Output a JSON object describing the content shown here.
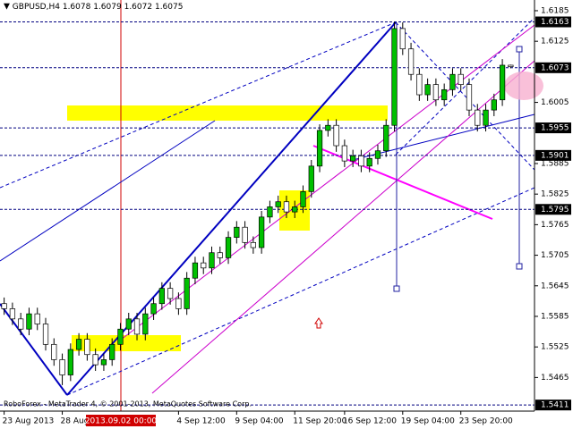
{
  "chart_data": {
    "type": "candlestick",
    "header": {
      "symbol": "GBPUSD,H4",
      "open": 1.6078,
      "high": 1.6079,
      "low": 1.6072,
      "close": 1.6075
    },
    "copyright": "RoboForex - MetaTrader 4, © 2001-2013, MetaQuotes Software Corp.",
    "crosshair_label": "2013.09.02 00:00",
    "categories": [
      "23 Aug 2013",
      null,
      null,
      null,
      null,
      null,
      null,
      "28 Aug 2013",
      null,
      null,
      null,
      null,
      null,
      null,
      null,
      null,
      null,
      null,
      null,
      null,
      null,
      "4 Sep 12:00",
      null,
      null,
      null,
      null,
      null,
      null,
      "9 Sep 04:00",
      null,
      null,
      null,
      null,
      null,
      null,
      "11 Sep 20:00",
      null,
      null,
      null,
      null,
      null,
      "16 Sep 12:00",
      null,
      null,
      null,
      null,
      null,
      null,
      "19 Sep 04:00",
      null,
      null,
      null,
      null,
      null,
      null,
      "23 Sep 20:00",
      null,
      null,
      null,
      null,
      null,
      null
    ],
    "open": [
      1.561,
      1.56,
      1.558,
      1.556,
      1.559,
      1.557,
      1.553,
      1.55,
      1.547,
      1.552,
      1.554,
      1.551,
      1.549,
      1.55,
      1.553,
      1.556,
      1.558,
      1.555,
      1.559,
      1.561,
      1.564,
      1.562,
      1.56,
      1.566,
      1.569,
      1.568,
      1.571,
      1.57,
      1.574,
      1.576,
      1.573,
      1.572,
      1.578,
      1.58,
      1.581,
      1.579,
      1.58,
      1.583,
      1.588,
      1.595,
      1.596,
      1.592,
      1.589,
      1.59,
      1.588,
      1.5895,
      1.591,
      1.596,
      1.615,
      1.611,
      1.606,
      1.602,
      1.604,
      1.601,
      1.603,
      1.606,
      1.604,
      1.599,
      1.596,
      1.599,
      1.601,
      1.6078
    ],
    "high": [
      1.5622,
      1.5612,
      1.5592,
      1.5602,
      1.5602,
      1.5582,
      1.5542,
      1.5512,
      1.5532,
      1.5552,
      1.5552,
      1.5522,
      1.5512,
      1.5542,
      1.5572,
      1.5592,
      1.5592,
      1.5602,
      1.5622,
      1.5652,
      1.5652,
      1.5632,
      1.5672,
      1.5702,
      1.5702,
      1.5722,
      1.5722,
      1.5752,
      1.5772,
      1.5772,
      1.5742,
      1.5792,
      1.5812,
      1.5822,
      1.5822,
      1.5812,
      1.5842,
      1.5892,
      1.5962,
      1.5972,
      1.5972,
      1.5932,
      1.5912,
      1.5912,
      1.5907,
      1.5922,
      1.5972,
      1.6163,
      1.6162,
      1.6122,
      1.6072,
      1.6052,
      1.6052,
      1.6042,
      1.6072,
      1.6072,
      1.6052,
      1.6002,
      1.6002,
      1.6022,
      1.609,
      1.6079
    ],
    "low": [
      1.5588,
      1.5568,
      1.5548,
      1.5548,
      1.5558,
      1.5518,
      1.5488,
      1.545,
      1.5458,
      1.5508,
      1.5498,
      1.5478,
      1.5478,
      1.5488,
      1.5518,
      1.5548,
      1.5538,
      1.5538,
      1.5578,
      1.5598,
      1.5608,
      1.5588,
      1.5588,
      1.5648,
      1.5668,
      1.5668,
      1.5688,
      1.5688,
      1.5728,
      1.5718,
      1.5708,
      1.5708,
      1.5768,
      1.5788,
      1.5778,
      1.5778,
      1.5788,
      1.5818,
      1.5868,
      1.5938,
      1.5908,
      1.5878,
      1.5878,
      1.5868,
      1.5868,
      1.5883,
      1.5898,
      1.5948,
      1.6098,
      1.6048,
      1.6008,
      1.6008,
      1.5998,
      1.5998,
      1.6018,
      1.6028,
      1.5978,
      1.5948,
      1.5948,
      1.5978,
      1.5998,
      1.6072
    ],
    "close": [
      1.56,
      1.558,
      1.556,
      1.559,
      1.557,
      1.553,
      1.55,
      1.547,
      1.552,
      1.554,
      1.551,
      1.549,
      1.55,
      1.553,
      1.556,
      1.558,
      1.555,
      1.559,
      1.561,
      1.564,
      1.562,
      1.56,
      1.566,
      1.569,
      1.568,
      1.571,
      1.57,
      1.574,
      1.576,
      1.573,
      1.572,
      1.578,
      1.58,
      1.581,
      1.579,
      1.58,
      1.583,
      1.588,
      1.595,
      1.596,
      1.592,
      1.589,
      1.59,
      1.588,
      1.5895,
      1.591,
      1.596,
      1.615,
      1.611,
      1.606,
      1.602,
      1.604,
      1.601,
      1.603,
      1.606,
      1.604,
      1.599,
      1.596,
      1.599,
      1.601,
      1.6078,
      1.6075
    ],
    "up_color": "#00c000",
    "down_color": "#ffffff",
    "ylim": [
      1.5399,
      1.6206
    ],
    "yticks": [
      1.6185,
      1.6125,
      1.6005,
      1.5885,
      1.5825,
      1.5765,
      1.5705,
      1.5645,
      1.5585,
      1.5525,
      1.5465
    ],
    "price_levels": [
      1.6163,
      1.6073,
      1.5955,
      1.5901,
      1.5795,
      1.5411
    ]
  }
}
